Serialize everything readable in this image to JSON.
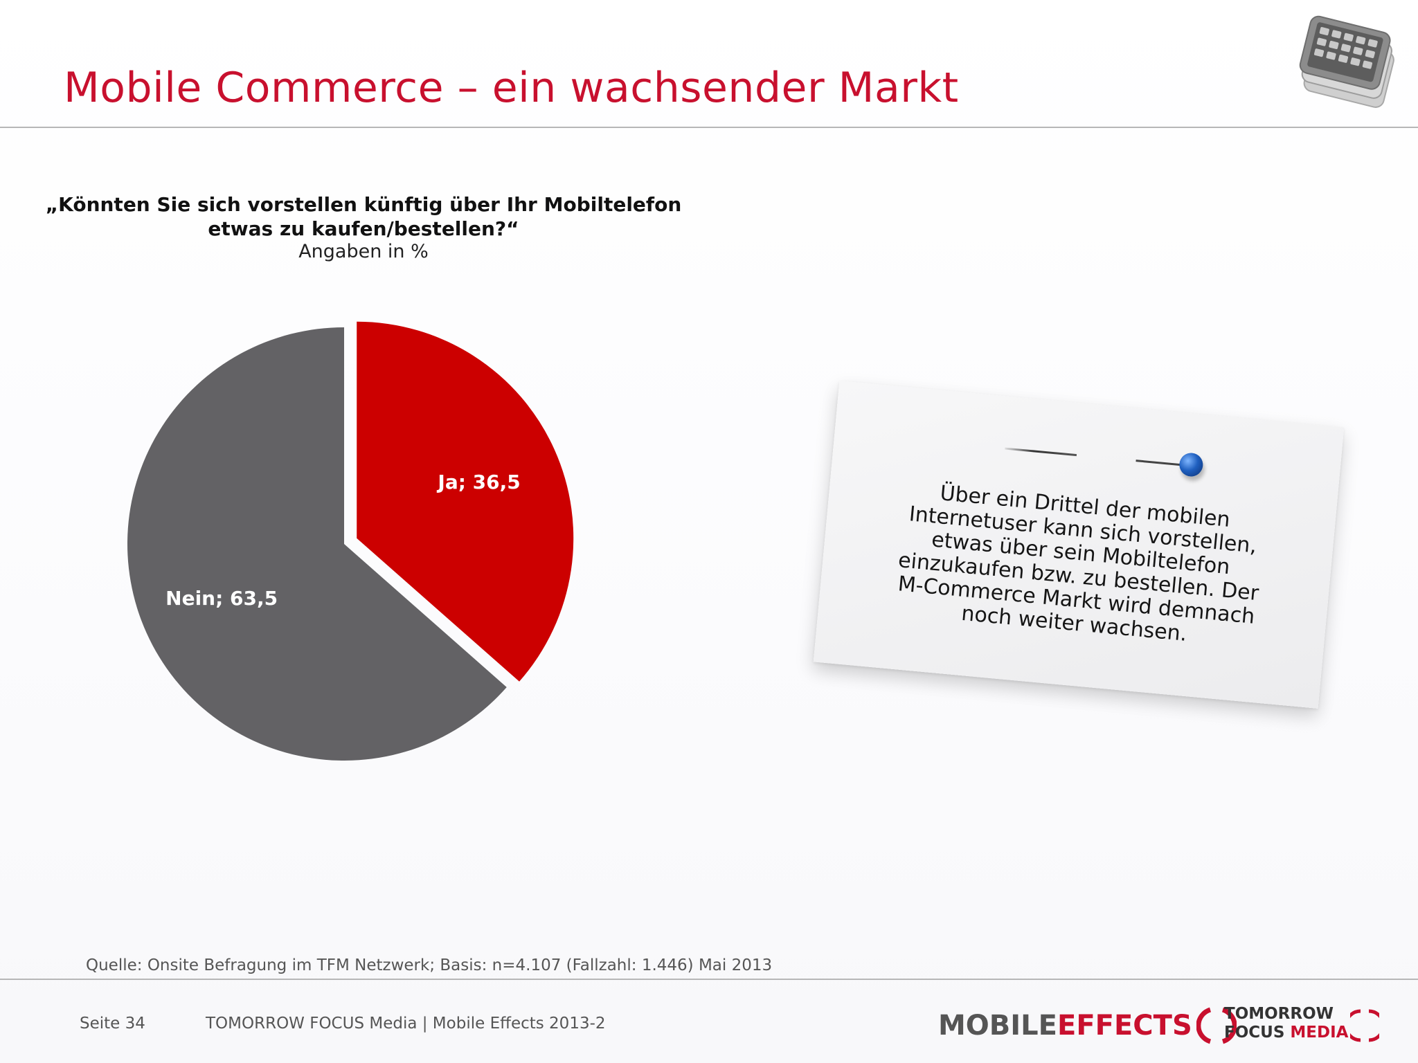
{
  "page": {
    "title": "Mobile Commerce – ein wachsender Markt",
    "source": "Quelle: Onsite Befragung im TFM Netzwerk; Basis: n=4.107 (Fallzahl: 1.446) Mai 2013",
    "footer": {
      "page_label": "Seite 34",
      "publication": "TOMORROW FOCUS Media  |  Mobile Effects 2013-2"
    },
    "logos": {
      "mobile_effects_word1": "MOBILE",
      "mobile_effects_word2": "EFFECTS",
      "tfm_line1": "TOMORROW",
      "tfm_line2a": "FOCUS",
      "tfm_line2b": "MEDIA"
    },
    "note": {
      "text": "Über ein Drittel der mobilen Internetuser kann sich vorstellen, etwas über sein Mobiltelefon einzukaufen bzw. zu bestellen. Der M-Commerce Markt wird demnach noch weiter wachsen."
    },
    "icons": {
      "header_graphic": "stacked-smartphones-icon",
      "note_pin": "blue-push-pin-icon"
    }
  },
  "chart_data": {
    "type": "pie",
    "title": "„Könnten Sie sich vorstellen künftig über Ihr Mobiltelefon etwas zu kaufen/bestellen?“",
    "subtitle": "Angaben in %",
    "slices": [
      {
        "label": "Ja",
        "value": 36.5,
        "display": "Ja; 36,5",
        "color": "#cc0000",
        "exploded": true
      },
      {
        "label": "Nein",
        "value": 63.5,
        "display": "Nein; 63,5",
        "color": "#636265",
        "exploded": false
      }
    ],
    "start_angle_deg": 0,
    "direction": "clockwise"
  },
  "colors": {
    "accent": "#c8102e",
    "rule": "#b7b7b7"
  }
}
